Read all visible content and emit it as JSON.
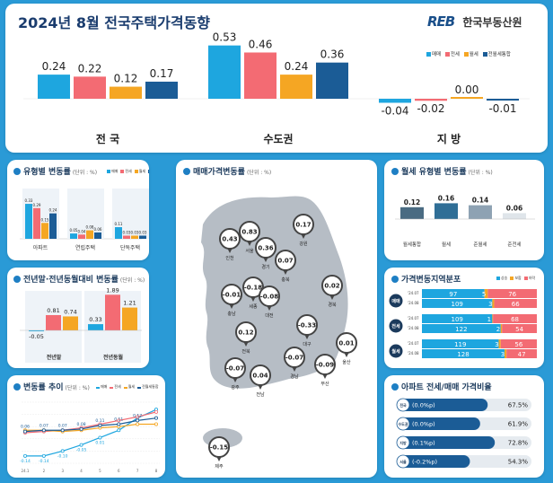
{
  "header": {
    "title": "2024년 8월 전국주택가격동향",
    "logo_mark": "REB",
    "logo_text": "한국부동산원"
  },
  "colors": {
    "sale": "#1ea6df",
    "jeonse": "#f36b73",
    "wolse": "#f5a623",
    "combined": "#1b5c96"
  },
  "legend": [
    "매매",
    "전세",
    "월세",
    "전월세통합"
  ],
  "chart_data": [
    {
      "id": "main",
      "type": "bar",
      "categories": [
        "전 국",
        "수도권",
        "지 방"
      ],
      "series": [
        {
          "name": "매매",
          "values": [
            0.24,
            0.53,
            -0.04
          ]
        },
        {
          "name": "전세",
          "values": [
            0.22,
            0.46,
            -0.02
          ]
        },
        {
          "name": "월세",
          "values": [
            0.12,
            0.24,
            0.0
          ]
        },
        {
          "name": "전월세통합",
          "values": [
            0.17,
            0.36,
            -0.01
          ]
        }
      ]
    },
    {
      "id": "type",
      "type": "bar",
      "title": "유형별 변동률",
      "unit": "(단위 : %)",
      "categories": [
        "아파트",
        "연립주택",
        "단독주택"
      ],
      "series": [
        {
          "name": "매매",
          "values": [
            0.33,
            0.05,
            0.11
          ]
        },
        {
          "name": "전세",
          "values": [
            0.29,
            0.04,
            0.03
          ]
        },
        {
          "name": "월세",
          "values": [
            0.15,
            0.08,
            0.03
          ]
        },
        {
          "name": "전월세통합",
          "values": [
            0.24,
            0.06,
            0.03
          ]
        }
      ]
    },
    {
      "id": "yoy",
      "type": "bar",
      "title": "전년말·전년동월대비 변동률",
      "unit": "(단위 : %)",
      "categories": [
        "전년말",
        "전년동월"
      ],
      "series": [
        {
          "name": "매매",
          "values": [
            -0.05,
            0.33
          ]
        },
        {
          "name": "전세",
          "values": [
            0.81,
            1.89
          ]
        },
        {
          "name": "월세",
          "values": [
            0.74,
            1.21
          ]
        }
      ]
    },
    {
      "id": "trend",
      "type": "line",
      "title": "변동률 추이",
      "unit": "(단위 : %)",
      "x": [
        "24.1",
        "2",
        "3",
        "4",
        "5",
        "6",
        "7",
        "8"
      ],
      "ylim": [
        -0.2,
        0.3
      ],
      "series": [
        {
          "name": "매매",
          "values": [
            -0.14,
            -0.14,
            -0.1,
            -0.05,
            0.01,
            0.07,
            0.17,
            0.24
          ]
        },
        {
          "name": "전세",
          "values": [
            0.05,
            0.06,
            0.07,
            0.09,
            0.12,
            0.15,
            0.18,
            0.22
          ]
        },
        {
          "name": "월세",
          "values": [
            0.07,
            0.07,
            0.06,
            0.07,
            0.09,
            0.1,
            0.12,
            0.12
          ]
        },
        {
          "name": "전월세통합",
          "values": [
            0.06,
            0.07,
            0.07,
            0.08,
            0.11,
            0.12,
            0.15,
            0.17
          ]
        }
      ],
      "labels_top": [
        "0.06",
        "0.07",
        "0.07",
        "0.08",
        "0.11",
        "0.11",
        "0.17"
      ],
      "labels_neg": [
        "-0.14",
        "-0.14",
        "-0.10",
        "-0.05",
        "0.01"
      ]
    },
    {
      "id": "wolse",
      "type": "bar",
      "title": "월세 유형별 변동률",
      "unit": "(단위 : %)",
      "categories": [
        "월세통합",
        "월세",
        "준월세",
        "준전세"
      ],
      "values": [
        0.12,
        0.16,
        0.14,
        0.06
      ]
    },
    {
      "id": "map",
      "title": "매매가격변동률",
      "unit": "(단위 : %)",
      "points": [
        {
          "name": "인천",
          "value": "0.43"
        },
        {
          "name": "서울",
          "value": "0.83"
        },
        {
          "name": "경기",
          "value": "0.36"
        },
        {
          "name": "강원",
          "value": "0.17"
        },
        {
          "name": "충북",
          "value": "0.07"
        },
        {
          "name": "세종",
          "value": "-0.18"
        },
        {
          "name": "충남",
          "value": "-0.01"
        },
        {
          "name": "대전",
          "value": "-0.08"
        },
        {
          "name": "경북",
          "value": "0.02"
        },
        {
          "name": "전북",
          "value": "0.12"
        },
        {
          "name": "대구",
          "value": "-0.33"
        },
        {
          "name": "울산",
          "value": "0.01"
        },
        {
          "name": "경남",
          "value": "-0.07"
        },
        {
          "name": "부산",
          "value": "-0.09"
        },
        {
          "name": "광주",
          "value": "-0.07"
        },
        {
          "name": "전남",
          "value": "0.04"
        },
        {
          "name": "제주",
          "value": "-0.15"
        }
      ]
    },
    {
      "id": "dist",
      "title": "가격변동지역분포",
      "legend": [
        "상승",
        "보합",
        "하락"
      ],
      "groups": [
        {
          "label": "매매",
          "rows": [
            {
              "date": "'24.07",
              "up": 97,
              "flat": 5,
              "down": 76
            },
            {
              "date": "'24.08",
              "up": 109,
              "flat": 3,
              "down": 66
            }
          ]
        },
        {
          "label": "전세",
          "rows": [
            {
              "date": "'24.07",
              "up": 109,
              "flat": 1,
              "down": 68
            },
            {
              "date": "'24.08",
              "up": 122,
              "flat": 2,
              "down": 54
            }
          ]
        },
        {
          "label": "월세",
          "rows": [
            {
              "date": "'24.07",
              "up": 119,
              "flat": 3,
              "down": 56
            },
            {
              "date": "'24.08",
              "up": 128,
              "flat": 3,
              "down": 47
            }
          ]
        }
      ]
    },
    {
      "id": "ratio",
      "title": "아파트 전세/매매 가격비율",
      "rows": [
        {
          "region": "전국",
          "change": "(0.0%p)",
          "value": 67.5,
          "label": "67.5%"
        },
        {
          "region": "수도권",
          "change": "(0.0%p)",
          "value": 61.9,
          "label": "61.9%"
        },
        {
          "region": "지방",
          "change": "(0.1%p)",
          "value": 72.8,
          "label": "72.8%"
        },
        {
          "region": "서울",
          "change": "(-0.2%p)",
          "value": 54.3,
          "label": "54.3%"
        }
      ]
    }
  ]
}
